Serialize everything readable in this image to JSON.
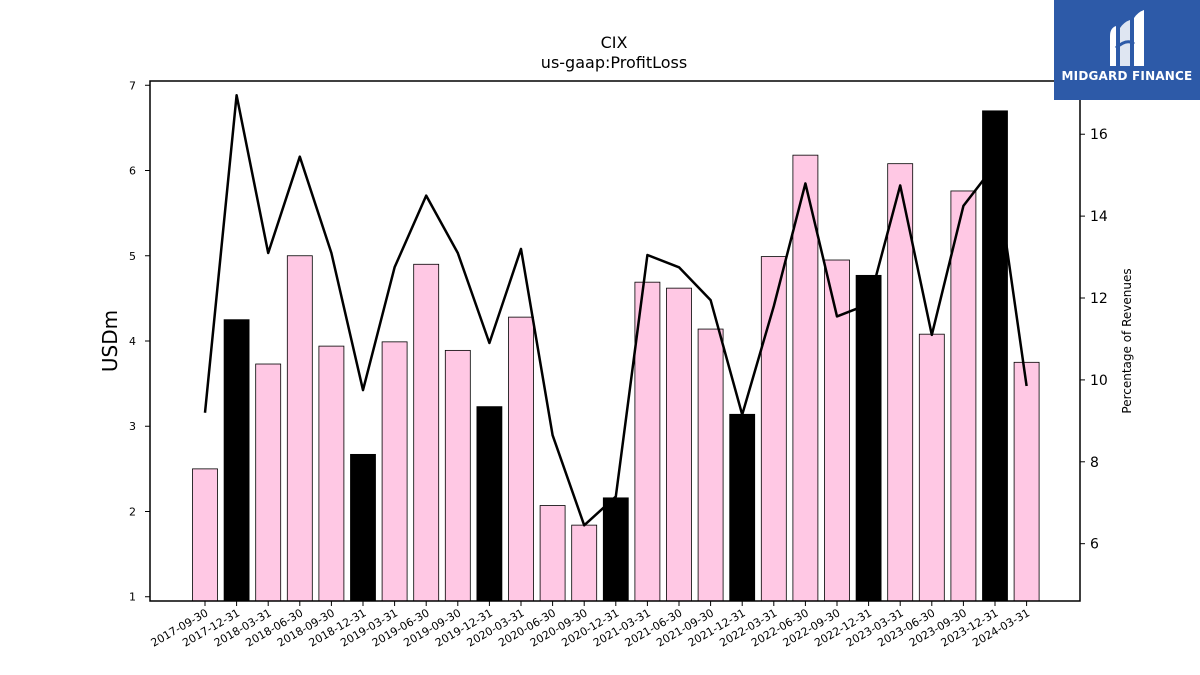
{
  "chart_data": {
    "type": "bar",
    "title": "CIX",
    "subtitle": "us-gaap:ProfitLoss",
    "ylabel": "USDm",
    "y2label": "Percentage of Revenues",
    "ylim": [
      0.95,
      7.05
    ],
    "y2lim": [
      4.6,
      17.3
    ],
    "yticks": [
      1,
      2,
      3,
      4,
      5,
      6,
      7
    ],
    "y2ticks": [
      6,
      8,
      10,
      12,
      14,
      16
    ],
    "categories": [
      "2017-09-30",
      "2017-12-31",
      "2018-03-31",
      "2018-06-30",
      "2018-09-30",
      "2018-12-31",
      "2019-03-31",
      "2019-06-30",
      "2019-09-30",
      "2019-12-31",
      "2020-03-31",
      "2020-06-30",
      "2020-09-30",
      "2020-12-31",
      "2021-03-31",
      "2021-06-30",
      "2021-09-30",
      "2021-12-31",
      "2022-03-31",
      "2022-06-30",
      "2022-09-30",
      "2022-12-31",
      "2023-03-31",
      "2023-06-30",
      "2023-09-30",
      "2023-12-31",
      "2024-03-31"
    ],
    "series": [
      {
        "kind": "bar",
        "values": [
          2.5,
          4.25,
          3.73,
          5.0,
          3.94,
          2.67,
          3.99,
          4.9,
          3.89,
          3.23,
          4.28,
          2.07,
          1.84,
          2.16,
          4.69,
          4.62,
          4.14,
          3.14,
          4.99,
          6.18,
          4.95,
          4.77,
          6.08,
          4.08,
          5.76,
          6.7,
          3.75
        ],
        "colors": [
          "#ffc8e4",
          "#000000",
          "#ffc8e4",
          "#ffc8e4",
          "#ffc8e4",
          "#000000",
          "#ffc8e4",
          "#ffc8e4",
          "#ffc8e4",
          "#000000",
          "#ffc8e4",
          "#ffc8e4",
          "#ffc8e4",
          "#000000",
          "#ffc8e4",
          "#ffc8e4",
          "#ffc8e4",
          "#000000",
          "#ffc8e4",
          "#ffc8e4",
          "#ffc8e4",
          "#000000",
          "#ffc8e4",
          "#ffc8e4",
          "#ffc8e4",
          "#000000",
          "#ffc8e4"
        ]
      },
      {
        "kind": "line",
        "axis": "right",
        "color": "#000000",
        "values": [
          9.2,
          16.95,
          13.1,
          15.45,
          13.1,
          9.75,
          12.75,
          14.5,
          13.1,
          10.9,
          13.2,
          8.65,
          6.45,
          7.15,
          13.05,
          12.75,
          11.95,
          9.15,
          11.8,
          14.8,
          11.55,
          11.85,
          14.75,
          11.1,
          14.25,
          15.25,
          9.85
        ]
      }
    ],
    "grid": false
  },
  "brand": {
    "name": "MIDGARD FINANCE",
    "color": "#2d5aa8"
  }
}
